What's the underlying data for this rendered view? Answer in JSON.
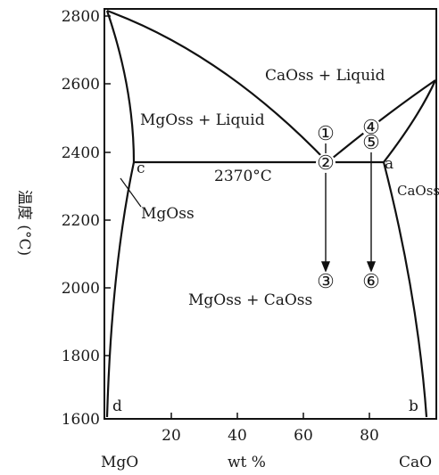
{
  "diagram": {
    "y_axis_label": "温度 (°C)",
    "y_ticks": [
      "2800",
      "2600",
      "2400",
      "2200",
      "2000",
      "1800",
      "1600"
    ],
    "x_ticks": [
      "20",
      "40",
      "60",
      "80"
    ],
    "x_left_component": "MgO",
    "x_center_label": "wt %",
    "x_right_component": "CaO",
    "region_labels": {
      "cao_liquid": "CaOss + Liquid",
      "mgo_liquid": "MgOss + Liquid",
      "mgo_ss": "MgOss",
      "cao_ss": "CaOss",
      "two_solids": "MgOss + CaOss"
    },
    "eutectic_temperature": "2370°C",
    "points": {
      "a": "a",
      "b": "b",
      "c": "c",
      "d": "d"
    },
    "circled_markers": [
      "①",
      "②",
      "③",
      "④",
      "⑤",
      "⑥"
    ]
  }
}
